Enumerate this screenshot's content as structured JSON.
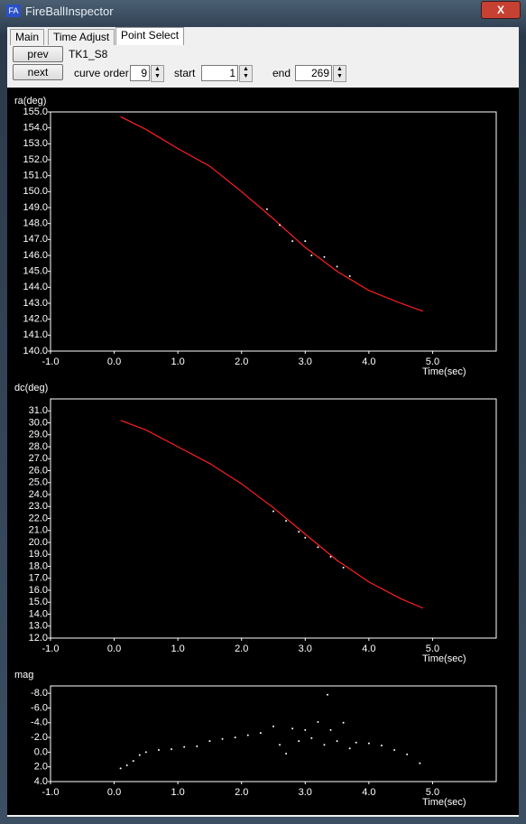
{
  "window": {
    "title": "FireBallInspector",
    "close": "X"
  },
  "tabs": [
    "Main",
    "Time Adjust",
    "Point Select"
  ],
  "controls": {
    "prev": "prev",
    "next": "next",
    "name": "TK1_S8",
    "curve_order_label": "curve order",
    "curve_order": "9",
    "start_label": "start",
    "start": "1",
    "end_label": "end",
    "end": "269"
  },
  "chart_data": [
    {
      "type": "scatter",
      "ylabel": "ra(deg)",
      "xlabel": "Time(sec)",
      "xlim": [
        -1.0,
        6.0
      ],
      "ylim": [
        140.0,
        155.0
      ],
      "xticks": [
        {
          "value": -1,
          "label": "-1.0"
        },
        {
          "value": 0,
          "label": "0.0"
        },
        {
          "value": 1,
          "label": "1.0"
        },
        {
          "value": 2,
          "label": "2.0"
        },
        {
          "value": 3,
          "label": "3.0"
        },
        {
          "value": 4,
          "label": "4.0"
        },
        {
          "value": 5,
          "label": "5.0"
        }
      ],
      "yticks": [
        {
          "value": 140,
          "label": "140.0"
        },
        {
          "value": 141,
          "label": "141.0"
        },
        {
          "value": 142,
          "label": "142.0"
        },
        {
          "value": 143,
          "label": "143.0"
        },
        {
          "value": 144,
          "label": "144.0"
        },
        {
          "value": 145,
          "label": "145.0"
        },
        {
          "value": 146,
          "label": "146.0"
        },
        {
          "value": 147,
          "label": "147.0"
        },
        {
          "value": 148,
          "label": "148.0"
        },
        {
          "value": 149,
          "label": "149.0"
        },
        {
          "value": 150,
          "label": "150.0"
        },
        {
          "value": 151,
          "label": "151.0"
        },
        {
          "value": 152,
          "label": "152.0"
        },
        {
          "value": 153,
          "label": "153.0"
        },
        {
          "value": 154,
          "label": "154.0"
        },
        {
          "value": 155,
          "label": "155.0"
        }
      ],
      "series": [
        {
          "color": "#ff2020",
          "style": "line",
          "x": [
            0.1,
            0.5,
            1.0,
            1.5,
            2.0,
            2.5,
            3.0,
            3.5,
            4.0,
            4.5,
            4.85
          ],
          "values": [
            154.7,
            153.9,
            152.7,
            151.6,
            150.0,
            148.3,
            146.5,
            145.0,
            143.8,
            143.0,
            142.5
          ]
        },
        {
          "color": "#ffffff",
          "style": "points",
          "x": [
            2.4,
            2.6,
            2.8,
            3.0,
            3.1,
            3.3,
            3.5,
            3.7
          ],
          "values": [
            148.9,
            147.9,
            146.9,
            146.9,
            146.0,
            145.9,
            145.3,
            144.7
          ]
        }
      ]
    },
    {
      "type": "scatter",
      "ylabel": "dc(deg)",
      "xlabel": "Time(sec)",
      "xlim": [
        -1.0,
        6.0
      ],
      "ylim": [
        12.0,
        32.0
      ],
      "xticks": [
        {
          "value": -1,
          "label": "-1.0"
        },
        {
          "value": 0,
          "label": "0.0"
        },
        {
          "value": 1,
          "label": "1.0"
        },
        {
          "value": 2,
          "label": "2.0"
        },
        {
          "value": 3,
          "label": "3.0"
        },
        {
          "value": 4,
          "label": "4.0"
        },
        {
          "value": 5,
          "label": "5.0"
        }
      ],
      "yticks": [
        {
          "value": 12,
          "label": "12.0"
        },
        {
          "value": 13,
          "label": "13.0"
        },
        {
          "value": 14,
          "label": "14.0"
        },
        {
          "value": 15,
          "label": "15.0"
        },
        {
          "value": 16,
          "label": "16.0"
        },
        {
          "value": 17,
          "label": "17.0"
        },
        {
          "value": 18,
          "label": "18.0"
        },
        {
          "value": 19,
          "label": "19.0"
        },
        {
          "value": 20,
          "label": "20.0"
        },
        {
          "value": 21,
          "label": "21.0"
        },
        {
          "value": 22,
          "label": "22.0"
        },
        {
          "value": 23,
          "label": "23.0"
        },
        {
          "value": 24,
          "label": "24.0"
        },
        {
          "value": 25,
          "label": "25.0"
        },
        {
          "value": 26,
          "label": "26.0"
        },
        {
          "value": 27,
          "label": "27.0"
        },
        {
          "value": 28,
          "label": "28.0"
        },
        {
          "value": 29,
          "label": "29.0"
        },
        {
          "value": 30,
          "label": "30.0"
        },
        {
          "value": 31,
          "label": "31.0"
        }
      ],
      "series": [
        {
          "color": "#ff2020",
          "style": "line",
          "x": [
            0.1,
            0.5,
            1.0,
            1.5,
            2.0,
            2.5,
            3.0,
            3.5,
            4.0,
            4.5,
            4.85
          ],
          "values": [
            30.2,
            29.4,
            28.0,
            26.6,
            24.9,
            22.9,
            20.7,
            18.5,
            16.7,
            15.3,
            14.5
          ]
        },
        {
          "color": "#ffffff",
          "style": "points",
          "x": [
            2.5,
            2.7,
            2.9,
            3.0,
            3.2,
            3.4,
            3.6
          ],
          "values": [
            22.6,
            21.8,
            20.9,
            20.4,
            19.6,
            18.8,
            17.9
          ]
        }
      ]
    },
    {
      "type": "scatter",
      "ylabel": "mag",
      "xlabel": "Time(sec)",
      "xlim": [
        -1.0,
        6.0
      ],
      "ylim": [
        4.0,
        -9.0
      ],
      "xticks": [
        {
          "value": -1,
          "label": "-1.0"
        },
        {
          "value": 0,
          "label": "0.0"
        },
        {
          "value": 1,
          "label": "1.0"
        },
        {
          "value": 2,
          "label": "2.0"
        },
        {
          "value": 3,
          "label": "3.0"
        },
        {
          "value": 4,
          "label": "4.0"
        },
        {
          "value": 5,
          "label": "5.0"
        }
      ],
      "yticks": [
        {
          "value": -8,
          "label": "-8.0"
        },
        {
          "value": -6,
          "label": "-6.0"
        },
        {
          "value": -4,
          "label": "-4.0"
        },
        {
          "value": -2,
          "label": "-2.0"
        },
        {
          "value": 0,
          "label": "0.0"
        },
        {
          "value": 2,
          "label": "2.0"
        },
        {
          "value": 4,
          "label": "4.0"
        }
      ],
      "series": [
        {
          "color": "#ffffff",
          "style": "points",
          "x": [
            0.1,
            0.2,
            0.3,
            0.4,
            0.5,
            0.7,
            0.9,
            1.1,
            1.3,
            1.5,
            1.7,
            1.9,
            2.1,
            2.3,
            2.5,
            2.6,
            2.7,
            2.8,
            2.9,
            3.0,
            3.1,
            3.2,
            3.3,
            3.35,
            3.4,
            3.5,
            3.6,
            3.7,
            3.8,
            4.0,
            4.2,
            4.4,
            4.6,
            4.8
          ],
          "values": [
            2.2,
            1.8,
            1.2,
            0.4,
            0.0,
            -0.3,
            -0.4,
            -0.7,
            -0.8,
            -1.5,
            -1.8,
            -2.0,
            -2.3,
            -2.6,
            -3.5,
            -1.0,
            0.2,
            -3.2,
            -1.5,
            -3.0,
            -1.9,
            -4.1,
            -1.0,
            -7.8,
            -3.0,
            -1.5,
            -4.0,
            -0.5,
            -1.3,
            -1.2,
            -0.9,
            -0.3,
            0.3,
            1.5
          ]
        }
      ]
    }
  ]
}
